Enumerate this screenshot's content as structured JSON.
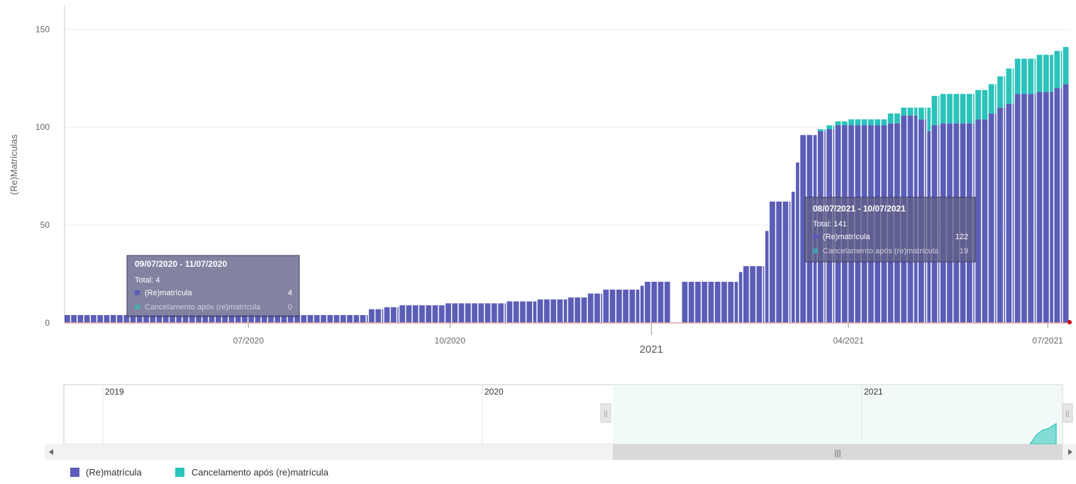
{
  "chart_data": {
    "type": "bar",
    "stacked": true,
    "ylabel": "(Re)Matrículas",
    "ylim": [
      0,
      165
    ],
    "yticks": [
      0,
      50,
      100,
      150
    ],
    "grid": true,
    "legend_position": "bottom-left",
    "x_range": [
      "2020-04-08",
      "2021-07-11"
    ],
    "x_ticks": [
      {
        "date": "2020-07-01",
        "label": "07/2020"
      },
      {
        "date": "2020-10-01",
        "label": "10/2020"
      },
      {
        "date": "2021-01-01",
        "label": "2021"
      },
      {
        "date": "2021-04-01",
        "label": "04/2021"
      },
      {
        "date": "2021-07-01",
        "label": "07/2021"
      }
    ],
    "colors": {
      "rematricula": "#5b5db7",
      "cancelamento": "#2ac3bb",
      "baseline": "#e8a0a0",
      "marker": "#cc0000"
    },
    "segments": [
      {
        "start": "2020-04-08",
        "end": "2020-08-25",
        "rematricula": 4,
        "cancelamento": 0
      },
      {
        "start": "2020-08-25",
        "end": "2020-09-01",
        "rematricula": 7,
        "cancelamento": 0
      },
      {
        "start": "2020-09-01",
        "end": "2020-09-08",
        "rematricula": 8,
        "cancelamento": 0
      },
      {
        "start": "2020-09-08",
        "end": "2020-09-29",
        "rematricula": 9,
        "cancelamento": 0
      },
      {
        "start": "2020-09-29",
        "end": "2020-10-27",
        "rematricula": 10,
        "cancelamento": 0
      },
      {
        "start": "2020-10-27",
        "end": "2020-11-10",
        "rematricula": 11,
        "cancelamento": 0
      },
      {
        "start": "2020-11-10",
        "end": "2020-11-24",
        "rematricula": 12,
        "cancelamento": 0
      },
      {
        "start": "2020-11-24",
        "end": "2020-12-03",
        "rematricula": 13,
        "cancelamento": 0
      },
      {
        "start": "2020-12-03",
        "end": "2020-12-10",
        "rematricula": 15,
        "cancelamento": 0
      },
      {
        "start": "2020-12-10",
        "end": "2020-12-27",
        "rematricula": 17,
        "cancelamento": 0
      },
      {
        "start": "2020-12-27",
        "end": "2020-12-29",
        "rematricula": 19,
        "cancelamento": 0
      },
      {
        "start": "2020-12-29",
        "end": "2021-01-10",
        "rematricula": 21,
        "cancelamento": 0
      },
      {
        "start": "2021-01-15",
        "end": "2021-02-10",
        "rematricula": 21,
        "cancelamento": 0
      },
      {
        "start": "2021-02-10",
        "end": "2021-02-12",
        "rematricula": 26,
        "cancelamento": 0
      },
      {
        "start": "2021-02-12",
        "end": "2021-02-22",
        "rematricula": 29,
        "cancelamento": 0
      },
      {
        "start": "2021-02-22",
        "end": "2021-02-24",
        "rematricula": 47,
        "cancelamento": 0
      },
      {
        "start": "2021-02-24",
        "end": "2021-03-06",
        "rematricula": 62,
        "cancelamento": 0
      },
      {
        "start": "2021-03-06",
        "end": "2021-03-08",
        "rematricula": 67,
        "cancelamento": 0
      },
      {
        "start": "2021-03-08",
        "end": "2021-03-10",
        "rematricula": 82,
        "cancelamento": 0
      },
      {
        "start": "2021-03-10",
        "end": "2021-03-18",
        "rematricula": 96,
        "cancelamento": 0
      },
      {
        "start": "2021-03-18",
        "end": "2021-03-22",
        "rematricula": 98,
        "cancelamento": 1
      },
      {
        "start": "2021-03-22",
        "end": "2021-03-26",
        "rematricula": 99,
        "cancelamento": 2
      },
      {
        "start": "2021-03-26",
        "end": "2021-04-01",
        "rematricula": 101,
        "cancelamento": 2
      },
      {
        "start": "2021-04-01",
        "end": "2021-04-19",
        "rematricula": 101,
        "cancelamento": 3
      },
      {
        "start": "2021-04-19",
        "end": "2021-04-25",
        "rematricula": 102,
        "cancelamento": 5
      },
      {
        "start": "2021-04-25",
        "end": "2021-05-03",
        "rematricula": 106,
        "cancelamento": 4
      },
      {
        "start": "2021-05-03",
        "end": "2021-05-07",
        "rematricula": 104,
        "cancelamento": 6
      },
      {
        "start": "2021-05-07",
        "end": "2021-05-09",
        "rematricula": 98,
        "cancelamento": 12
      },
      {
        "start": "2021-05-09",
        "end": "2021-05-13",
        "rematricula": 101,
        "cancelamento": 15
      },
      {
        "start": "2021-05-13",
        "end": "2021-05-29",
        "rematricula": 102,
        "cancelamento": 15
      },
      {
        "start": "2021-05-29",
        "end": "2021-06-04",
        "rematricula": 104,
        "cancelamento": 15
      },
      {
        "start": "2021-06-04",
        "end": "2021-06-08",
        "rematricula": 107,
        "cancelamento": 15
      },
      {
        "start": "2021-06-08",
        "end": "2021-06-12",
        "rematricula": 110,
        "cancelamento": 16
      },
      {
        "start": "2021-06-12",
        "end": "2021-06-16",
        "rematricula": 112,
        "cancelamento": 18
      },
      {
        "start": "2021-06-16",
        "end": "2021-06-26",
        "rematricula": 117,
        "cancelamento": 18
      },
      {
        "start": "2021-06-26",
        "end": "2021-07-04",
        "rematricula": 118,
        "cancelamento": 19
      },
      {
        "start": "2021-07-04",
        "end": "2021-07-08",
        "rematricula": 120,
        "cancelamento": 19
      },
      {
        "start": "2021-07-08",
        "end": "2021-07-11",
        "rematricula": 122,
        "cancelamento": 19
      }
    ],
    "tooltips": [
      {
        "title": "09/07/2020 - 11/07/2020",
        "total": "Total: 4",
        "rows": [
          {
            "label": "(Re)matrícula",
            "value": "4"
          },
          {
            "label": "Cancelamento após (re)matrícula",
            "value": "0"
          }
        ]
      },
      {
        "title": "08/07/2021 - 10/07/2021",
        "total": "Total: 141",
        "rows": [
          {
            "label": "(Re)matrícula",
            "value": "122"
          },
          {
            "label": "Cancelamento após (re)matrícula",
            "value": "19"
          }
        ]
      }
    ],
    "legend": [
      {
        "key": "rematricula",
        "label": "(Re)matrícula"
      },
      {
        "key": "cancelamento",
        "label": "Cancelamento após (re)matrícula"
      }
    ]
  },
  "navigator": {
    "year_labels": [
      "2019",
      "2020",
      "2021"
    ],
    "scrollbar_grip": "|||",
    "handle_grip": "||"
  }
}
